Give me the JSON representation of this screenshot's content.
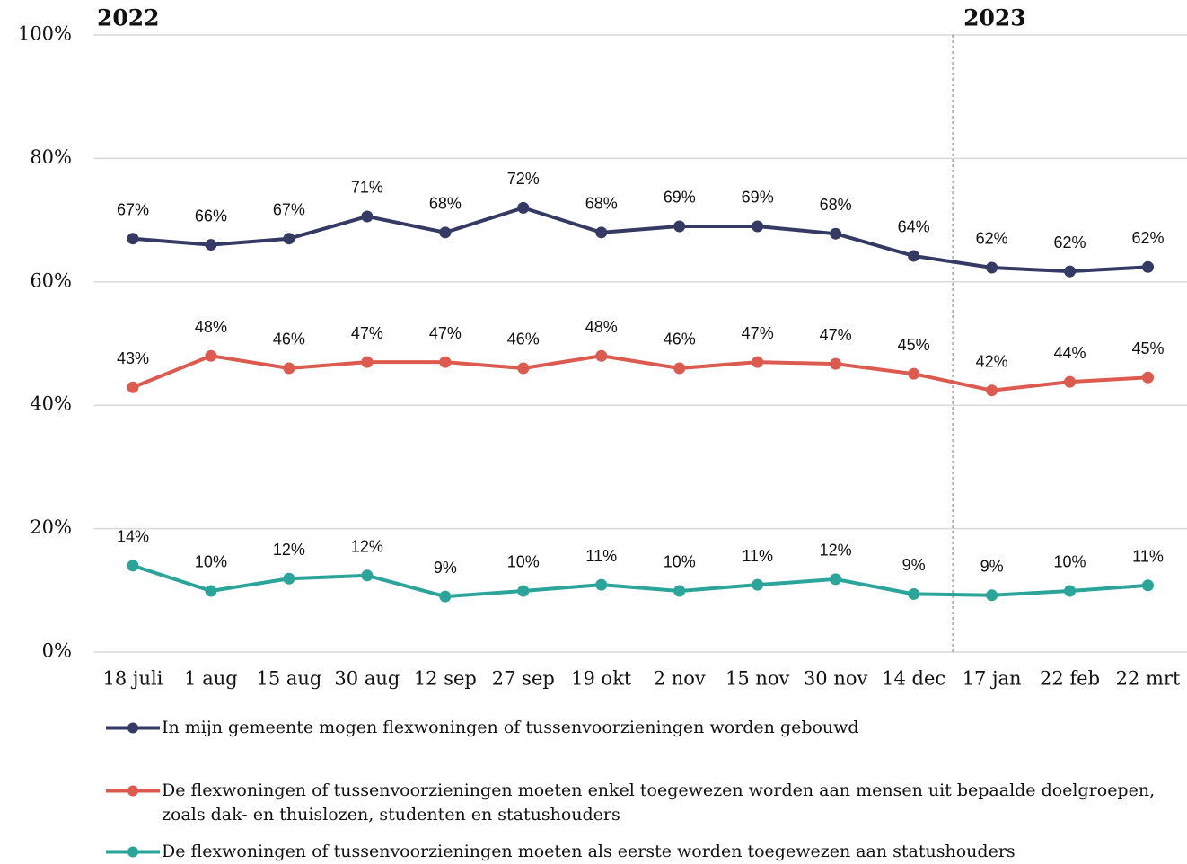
{
  "chart_data": {
    "type": "line",
    "annotations": [
      "2022",
      "2023"
    ],
    "categories": [
      "18 juli",
      "1 aug",
      "15 aug",
      "30 aug",
      "12 sep",
      "27 sep",
      "19 okt",
      "2 nov",
      "15 nov",
      "30 nov",
      "14 dec",
      "17 jan",
      "22 feb",
      "22 mrt"
    ],
    "series": [
      {
        "name": "In mijn gemeente mogen flexwoningen of tussenvoorzieningen worden gebouwd",
        "color": "#343a63",
        "values": [
          67,
          66,
          67,
          70.6,
          68,
          72,
          68,
          69,
          69,
          67.8,
          64.2,
          62.3,
          61.7,
          62.4
        ],
        "value_labels": [
          "67%",
          "66%",
          "67%",
          "71%",
          "68%",
          "72%",
          "68%",
          "69%",
          "69%",
          "68%",
          "64%",
          "62%",
          "62%",
          "62%"
        ]
      },
      {
        "name": "De flexwoningen of tussenvoorzieningen moeten enkel toegewezen worden aan mensen uit bepaalde doelgroepen, zoals dak- en thuislozen, studenten en statushouders",
        "color": "#dd5a4f",
        "values": [
          42.9,
          48,
          46,
          47,
          47,
          46,
          48,
          46,
          47,
          46.7,
          45.1,
          42.4,
          43.8,
          44.5
        ],
        "value_labels": [
          "43%",
          "48%",
          "46%",
          "47%",
          "47%",
          "46%",
          "48%",
          "46%",
          "47%",
          "47%",
          "45%",
          "42%",
          "44%",
          "45%"
        ]
      },
      {
        "name": "De flexwoningen of tussenvoorzieningen moeten als eerste worden toegewezen aan statushouders",
        "color": "#2ba59a",
        "values": [
          14,
          9.9,
          11.9,
          12.4,
          9,
          9.9,
          10.9,
          9.9,
          10.9,
          11.8,
          9.4,
          9.2,
          9.9,
          10.8
        ],
        "value_labels": [
          "14%",
          "10%",
          "12%",
          "12%",
          "9%",
          "10%",
          "11%",
          "10%",
          "11%",
          "12%",
          "9%",
          "9%",
          "10%",
          "11%"
        ]
      }
    ],
    "ylim": [
      0,
      100
    ],
    "yticks": [
      {
        "value": 0,
        "label": "0%"
      },
      {
        "value": 20,
        "label": "20%"
      },
      {
        "value": 40,
        "label": "40%"
      },
      {
        "value": 60,
        "label": "60%"
      },
      {
        "value": 80,
        "label": "80%"
      },
      {
        "value": 100,
        "label": "100%"
      }
    ],
    "grid": true
  }
}
